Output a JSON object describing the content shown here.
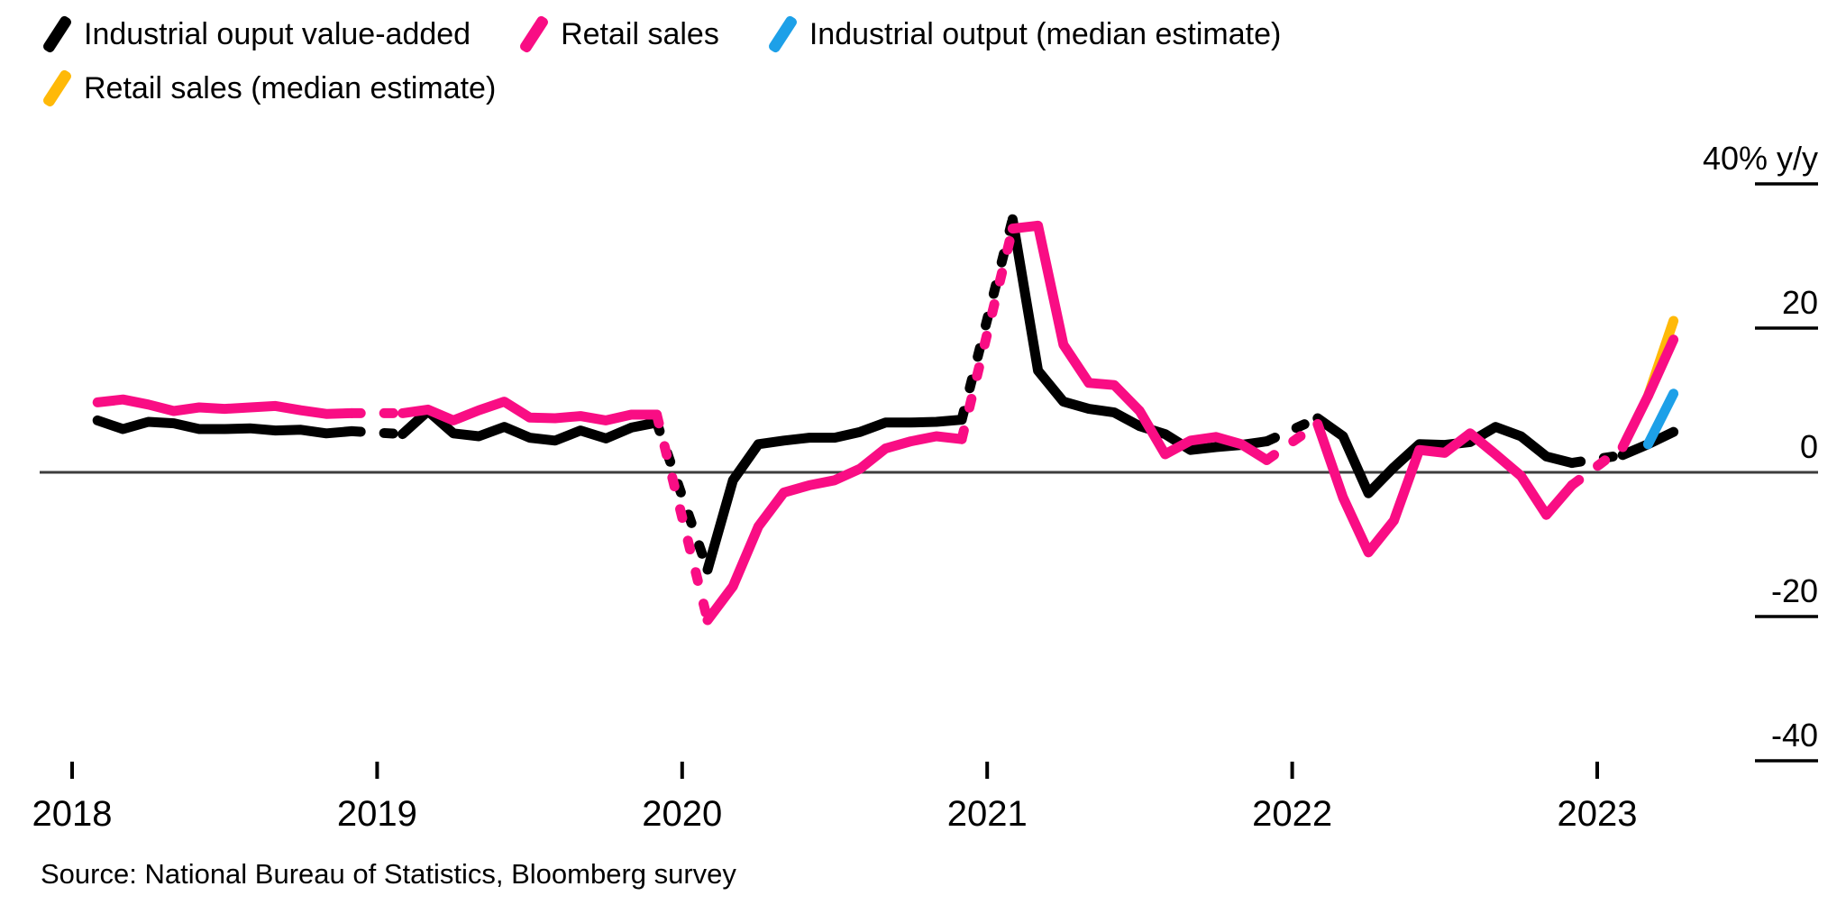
{
  "legend": {
    "rows": [
      [
        {
          "id": "industrial-output-actual",
          "label": "Industrial ouput value-added",
          "color": "#000000"
        },
        {
          "id": "retail-sales-actual",
          "label": "Retail sales",
          "color": "#f90d84"
        },
        {
          "id": "industrial-output-estimate",
          "label": "Industrial output (median estimate)",
          "color": "#1da0e8"
        }
      ],
      [
        {
          "id": "retail-sales-estimate",
          "label": "Retail sales (median estimate)",
          "color": "#ffb908"
        }
      ]
    ]
  },
  "source": "Source: National Bureau of Statistics, Bloomberg survey",
  "chart_data": {
    "type": "line",
    "title": "",
    "xlabel": "",
    "ylabel": "% y/y",
    "ylim": [
      -45,
      45
    ],
    "grid": "zero-line-only",
    "legend_position": "top-left",
    "zero_line": {
      "value": 0,
      "color": "#3d3d3d"
    },
    "y_axis": {
      "side": "right",
      "ticks": [
        {
          "label": "40% y/y",
          "value": 40
        },
        {
          "label": "20",
          "value": 20
        },
        {
          "label": "0",
          "value": 0
        },
        {
          "label": "-20",
          "value": -20
        },
        {
          "label": "-40",
          "value": -40
        }
      ]
    },
    "x_axis": {
      "ticks": [
        {
          "label": "2018",
          "date": "2018-01"
        },
        {
          "label": "2019",
          "date": "2019-01"
        },
        {
          "label": "2020",
          "date": "2020-01"
        },
        {
          "label": "2021",
          "date": "2021-01"
        },
        {
          "label": "2022",
          "date": "2022-01"
        },
        {
          "label": "2023",
          "date": "2023-01"
        }
      ]
    },
    "dash_note": "segments bridging the missing January print (China combines Jan-Feb data) are dashed",
    "series": [
      {
        "id": "industrial-output-actual",
        "name": "Industrial ouput value-added",
        "color": "#000000",
        "points": [
          [
            "2018-02",
            7.2
          ],
          [
            "2018-03",
            6.0
          ],
          [
            "2018-04",
            7.0
          ],
          [
            "2018-05",
            6.8
          ],
          [
            "2018-06",
            6.0
          ],
          [
            "2018-07",
            6.0
          ],
          [
            "2018-08",
            6.1
          ],
          [
            "2018-09",
            5.8
          ],
          [
            "2018-10",
            5.9
          ],
          [
            "2018-11",
            5.4
          ],
          [
            "2018-12",
            5.7
          ],
          [
            "2019-02",
            5.3
          ],
          [
            "2019-03",
            8.5
          ],
          [
            "2019-04",
            5.4
          ],
          [
            "2019-05",
            5.0
          ],
          [
            "2019-06",
            6.3
          ],
          [
            "2019-07",
            4.8
          ],
          [
            "2019-08",
            4.4
          ],
          [
            "2019-09",
            5.8
          ],
          [
            "2019-10",
            4.7
          ],
          [
            "2019-11",
            6.2
          ],
          [
            "2019-12",
            6.9
          ],
          [
            "2020-02",
            -13.5
          ],
          [
            "2020-03",
            -1.1
          ],
          [
            "2020-04",
            3.9
          ],
          [
            "2020-05",
            4.4
          ],
          [
            "2020-06",
            4.8
          ],
          [
            "2020-07",
            4.8
          ],
          [
            "2020-08",
            5.6
          ],
          [
            "2020-09",
            6.9
          ],
          [
            "2020-10",
            6.9
          ],
          [
            "2020-11",
            7.0
          ],
          [
            "2020-12",
            7.3
          ],
          [
            "2021-02",
            35.1
          ],
          [
            "2021-03",
            14.1
          ],
          [
            "2021-04",
            9.8
          ],
          [
            "2021-05",
            8.8
          ],
          [
            "2021-06",
            8.3
          ],
          [
            "2021-07",
            6.4
          ],
          [
            "2021-08",
            5.3
          ],
          [
            "2021-09",
            3.1
          ],
          [
            "2021-10",
            3.5
          ],
          [
            "2021-11",
            3.8
          ],
          [
            "2021-12",
            4.3
          ],
          [
            "2022-02",
            7.5
          ],
          [
            "2022-03",
            5.0
          ],
          [
            "2022-04",
            -2.9
          ],
          [
            "2022-05",
            0.7
          ],
          [
            "2022-06",
            3.9
          ],
          [
            "2022-07",
            3.8
          ],
          [
            "2022-08",
            4.2
          ],
          [
            "2022-09",
            6.3
          ],
          [
            "2022-10",
            5.0
          ],
          [
            "2022-11",
            2.2
          ],
          [
            "2022-12",
            1.3
          ],
          [
            "2023-02",
            2.4
          ],
          [
            "2023-03",
            3.9
          ],
          [
            "2023-04",
            5.6
          ]
        ]
      },
      {
        "id": "retail-sales-actual",
        "name": "Retail sales",
        "color": "#f90d84",
        "points": [
          [
            "2018-02",
            9.7
          ],
          [
            "2018-03",
            10.1
          ],
          [
            "2018-04",
            9.4
          ],
          [
            "2018-05",
            8.5
          ],
          [
            "2018-06",
            9.0
          ],
          [
            "2018-07",
            8.8
          ],
          [
            "2018-08",
            9.0
          ],
          [
            "2018-09",
            9.2
          ],
          [
            "2018-10",
            8.6
          ],
          [
            "2018-11",
            8.1
          ],
          [
            "2018-12",
            8.2
          ],
          [
            "2019-02",
            8.2
          ],
          [
            "2019-03",
            8.7
          ],
          [
            "2019-04",
            7.2
          ],
          [
            "2019-05",
            8.6
          ],
          [
            "2019-06",
            9.8
          ],
          [
            "2019-07",
            7.6
          ],
          [
            "2019-08",
            7.5
          ],
          [
            "2019-09",
            7.8
          ],
          [
            "2019-10",
            7.2
          ],
          [
            "2019-11",
            8.0
          ],
          [
            "2019-12",
            8.0
          ],
          [
            "2020-02",
            -20.5
          ],
          [
            "2020-03",
            -15.8
          ],
          [
            "2020-04",
            -7.5
          ],
          [
            "2020-05",
            -2.8
          ],
          [
            "2020-06",
            -1.8
          ],
          [
            "2020-07",
            -1.1
          ],
          [
            "2020-08",
            0.5
          ],
          [
            "2020-09",
            3.3
          ],
          [
            "2020-10",
            4.3
          ],
          [
            "2020-11",
            5.0
          ],
          [
            "2020-12",
            4.6
          ],
          [
            "2021-02",
            33.8
          ],
          [
            "2021-03",
            34.2
          ],
          [
            "2021-04",
            17.7
          ],
          [
            "2021-05",
            12.4
          ],
          [
            "2021-06",
            12.1
          ],
          [
            "2021-07",
            8.5
          ],
          [
            "2021-08",
            2.5
          ],
          [
            "2021-09",
            4.4
          ],
          [
            "2021-10",
            4.9
          ],
          [
            "2021-11",
            3.9
          ],
          [
            "2021-12",
            1.7
          ],
          [
            "2022-02",
            6.7
          ],
          [
            "2022-03",
            -3.5
          ],
          [
            "2022-04",
            -11.1
          ],
          [
            "2022-05",
            -6.7
          ],
          [
            "2022-06",
            3.1
          ],
          [
            "2022-07",
            2.7
          ],
          [
            "2022-08",
            5.4
          ],
          [
            "2022-09",
            2.5
          ],
          [
            "2022-10",
            -0.5
          ],
          [
            "2022-11",
            -5.9
          ],
          [
            "2022-12",
            -1.8
          ],
          [
            "2023-02",
            3.5
          ],
          [
            "2023-03",
            10.6
          ],
          [
            "2023-04",
            18.4
          ]
        ]
      },
      {
        "id": "industrial-output-estimate",
        "name": "Industrial output (median estimate)",
        "color": "#1da0e8",
        "points": [
          [
            "2023-03",
            3.9
          ],
          [
            "2023-04",
            10.9
          ]
        ]
      },
      {
        "id": "retail-sales-estimate",
        "name": "Retail sales (median estimate)",
        "color": "#ffb908",
        "points": [
          [
            "2023-03",
            10.6
          ],
          [
            "2023-04",
            21.0
          ]
        ]
      }
    ]
  }
}
